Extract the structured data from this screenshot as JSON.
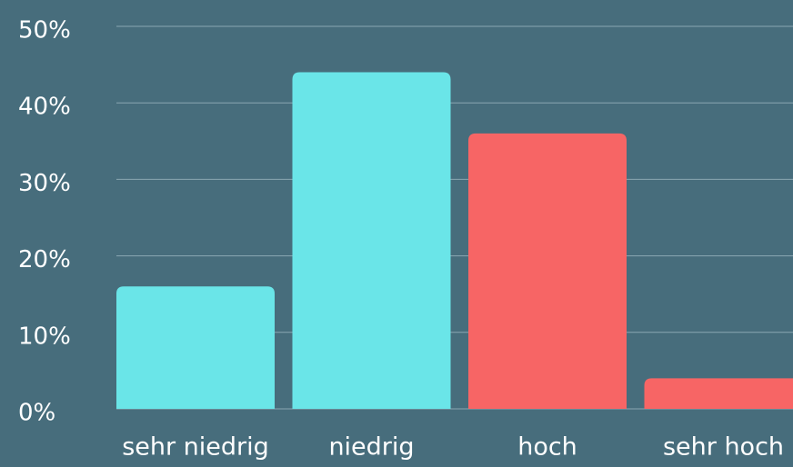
{
  "chart_data": {
    "type": "bar",
    "categories": [
      "sehr niedrig",
      "niedrig",
      "hoch",
      "sehr hoch"
    ],
    "values": [
      16,
      44,
      36,
      4
    ],
    "colors": [
      "#6ae5e8",
      "#6ae5e8",
      "#f76565",
      "#f76565"
    ],
    "ylim": [
      0,
      50
    ],
    "yticks": [
      {
        "value": 0,
        "label": "0%"
      },
      {
        "value": 10,
        "label": "10%"
      },
      {
        "value": 20,
        "label": "20%"
      },
      {
        "value": 30,
        "label": "30%"
      },
      {
        "value": 40,
        "label": "40%"
      },
      {
        "value": 50,
        "label": "50%"
      }
    ],
    "grid": true
  }
}
